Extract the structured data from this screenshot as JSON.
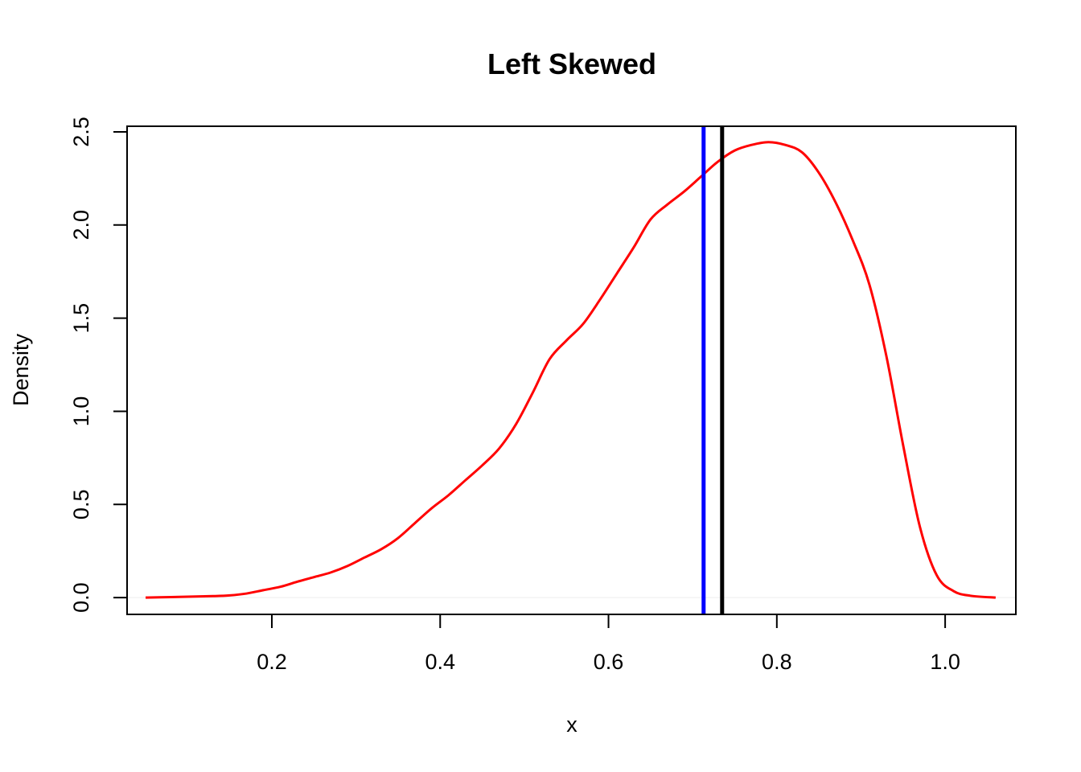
{
  "chart_data": {
    "type": "line",
    "title": "Left Skewed",
    "xlabel": "x",
    "ylabel": "Density",
    "xlim": [
      0.028,
      1.084
    ],
    "ylim": [
      -0.09,
      2.53
    ],
    "grid": false,
    "xticks": [
      {
        "value": 0.2,
        "label": "0.2"
      },
      {
        "value": 0.4,
        "label": "0.4"
      },
      {
        "value": 0.6,
        "label": "0.6"
      },
      {
        "value": 0.8,
        "label": "0.8"
      },
      {
        "value": 1.0,
        "label": "1.0"
      }
    ],
    "yticks": [
      {
        "value": 0.0,
        "label": "0.0"
      },
      {
        "value": 0.5,
        "label": "0.5"
      },
      {
        "value": 1.0,
        "label": "1.0"
      },
      {
        "value": 1.5,
        "label": "1.5"
      },
      {
        "value": 2.0,
        "label": "2.0"
      },
      {
        "value": 2.5,
        "label": "2.5"
      }
    ],
    "series": [
      {
        "color": "#ff0000",
        "x": [
          0.05,
          0.08,
          0.1,
          0.13,
          0.15,
          0.17,
          0.19,
          0.21,
          0.23,
          0.25,
          0.27,
          0.29,
          0.31,
          0.33,
          0.35,
          0.37,
          0.39,
          0.41,
          0.43,
          0.45,
          0.47,
          0.49,
          0.51,
          0.53,
          0.55,
          0.57,
          0.59,
          0.61,
          0.63,
          0.65,
          0.67,
          0.69,
          0.71,
          0.73,
          0.75,
          0.77,
          0.79,
          0.81,
          0.83,
          0.85,
          0.87,
          0.89,
          0.91,
          0.93,
          0.95,
          0.97,
          0.99,
          1.01,
          1.03,
          1.06
        ],
        "y": [
          0.0,
          0.003,
          0.005,
          0.008,
          0.012,
          0.022,
          0.04,
          0.058,
          0.085,
          0.11,
          0.135,
          0.17,
          0.215,
          0.26,
          0.32,
          0.4,
          0.48,
          0.55,
          0.63,
          0.71,
          0.8,
          0.93,
          1.1,
          1.28,
          1.38,
          1.47,
          1.6,
          1.74,
          1.88,
          2.03,
          2.11,
          2.18,
          2.26,
          2.34,
          2.4,
          2.43,
          2.445,
          2.43,
          2.39,
          2.28,
          2.12,
          1.92,
          1.68,
          1.3,
          0.82,
          0.38,
          0.12,
          0.035,
          0.01,
          0.0
        ]
      }
    ],
    "vlines": [
      {
        "x": 0.713,
        "color": "#0000ff"
      },
      {
        "x": 0.735,
        "color": "#000000"
      }
    ],
    "baseline": {
      "y": 0.0,
      "color": "#eeeeee"
    }
  }
}
